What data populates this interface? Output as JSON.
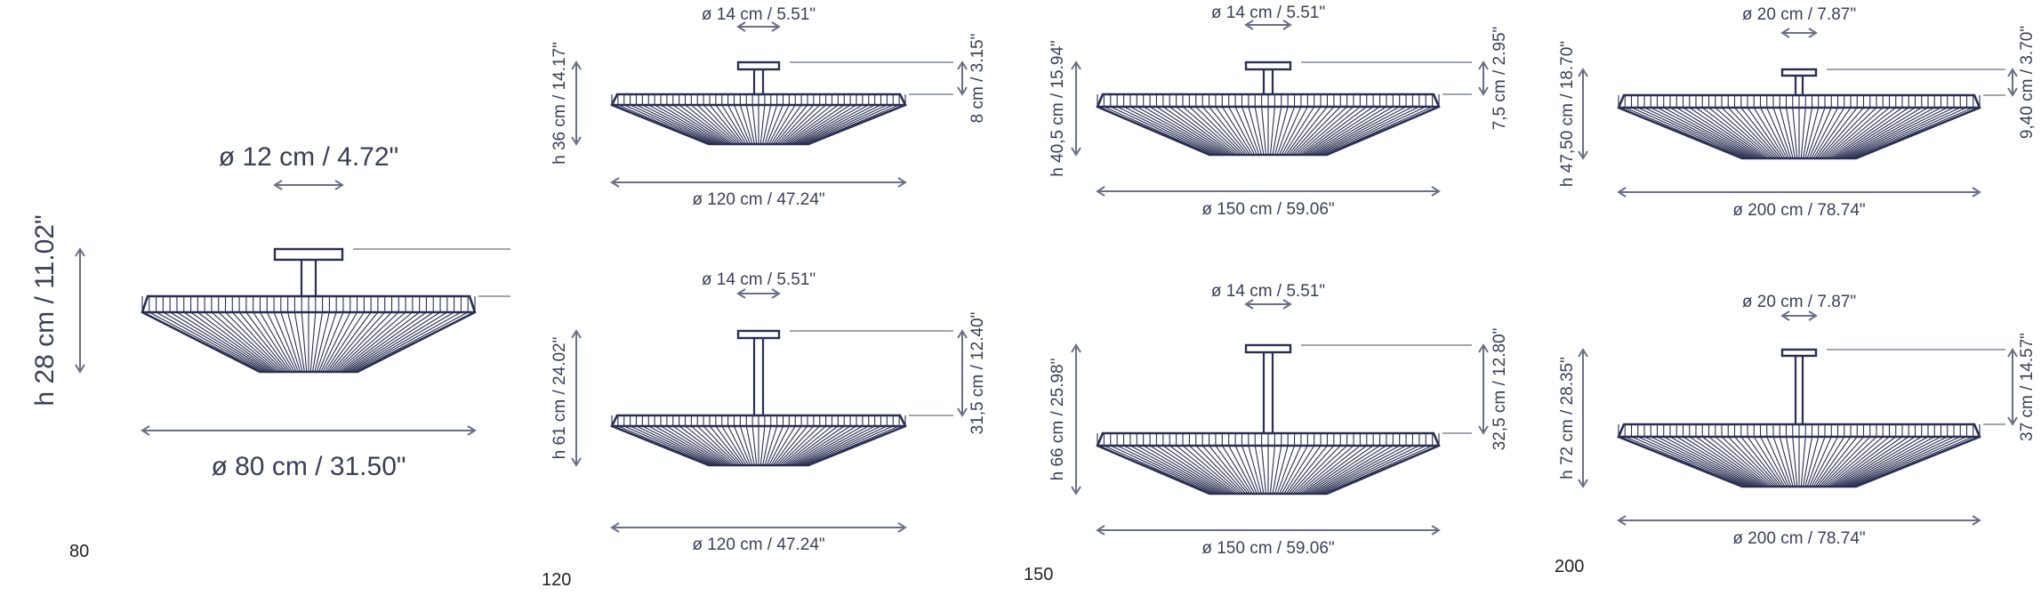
{
  "lamps": [
    {
      "model": "80",
      "canopy_diameter": "ø 12 cm / 4.72\"",
      "height": "h 28 cm / 11.02\"",
      "drop": "",
      "shade_diameter": "ø 80 cm / 31.50\""
    },
    {
      "model": "120",
      "canopy_diameter": "ø 14 cm / 5.51\"",
      "height": "h 36 cm / 14.17\"",
      "drop": "8 cm / 3.15\"",
      "shade_diameter": "ø 120 cm / 47.24\""
    },
    {
      "model": "120",
      "canopy_diameter": "ø 14 cm / 5.51\"",
      "height": "h 61 cm / 24.02\"",
      "drop": "31,5 cm / 12.40\"",
      "shade_diameter": "ø 120 cm / 47.24\""
    },
    {
      "model": "150",
      "canopy_diameter": "ø 14 cm / 5.51\"",
      "height": "h 40,5 cm / 15.94\"",
      "drop": "7,5 cm / 2.95\"",
      "shade_diameter": "ø 150 cm / 59.06\""
    },
    {
      "model": "150",
      "canopy_diameter": "ø 14 cm / 5.51\"",
      "height": "h 66 cm / 25.98\"",
      "drop": "32,5 cm / 12.80\"",
      "shade_diameter": "ø 150 cm / 59.06\""
    },
    {
      "model": "200",
      "canopy_diameter": "ø 20 cm / 7.87\"",
      "height": "h 47,50 cm / 18.70\"",
      "drop": "9,40 cm / 3.70\"",
      "shade_diameter": "ø 200 cm / 78.74\""
    },
    {
      "model": "200",
      "canopy_diameter": "ø 20 cm / 7.87\"",
      "height": "h 72 cm / 28.35\"",
      "drop": "37 cm / 14.57\"",
      "shade_diameter": "ø 200 cm / 78.74\""
    }
  ],
  "model_labels": [
    "80",
    "120",
    "150",
    "200"
  ],
  "colors": {
    "line": "#2a2f52",
    "dimension": "#6b6f86",
    "text": "#3a3f57"
  }
}
